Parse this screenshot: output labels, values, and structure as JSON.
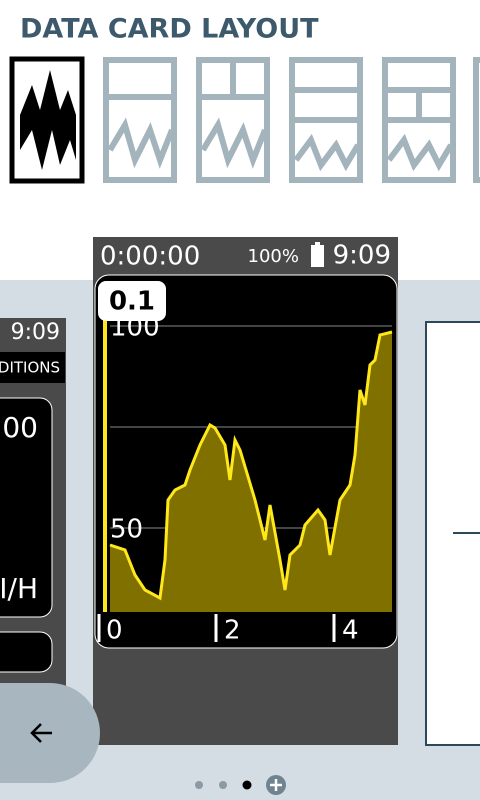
{
  "header": {
    "title": "DATA CARD LAYOUT"
  },
  "card": {
    "timer": "0:00:00",
    "battery": "100%",
    "clock": "9:09",
    "graph": {
      "badge": "0.1",
      "y_labels": [
        "100",
        "50"
      ],
      "x_labels": [
        "0",
        "2",
        "4"
      ]
    }
  },
  "left_card": {
    "clock": "9:09",
    "heading": "DITIONS",
    "value": "00",
    "unit": "I/H"
  }
}
